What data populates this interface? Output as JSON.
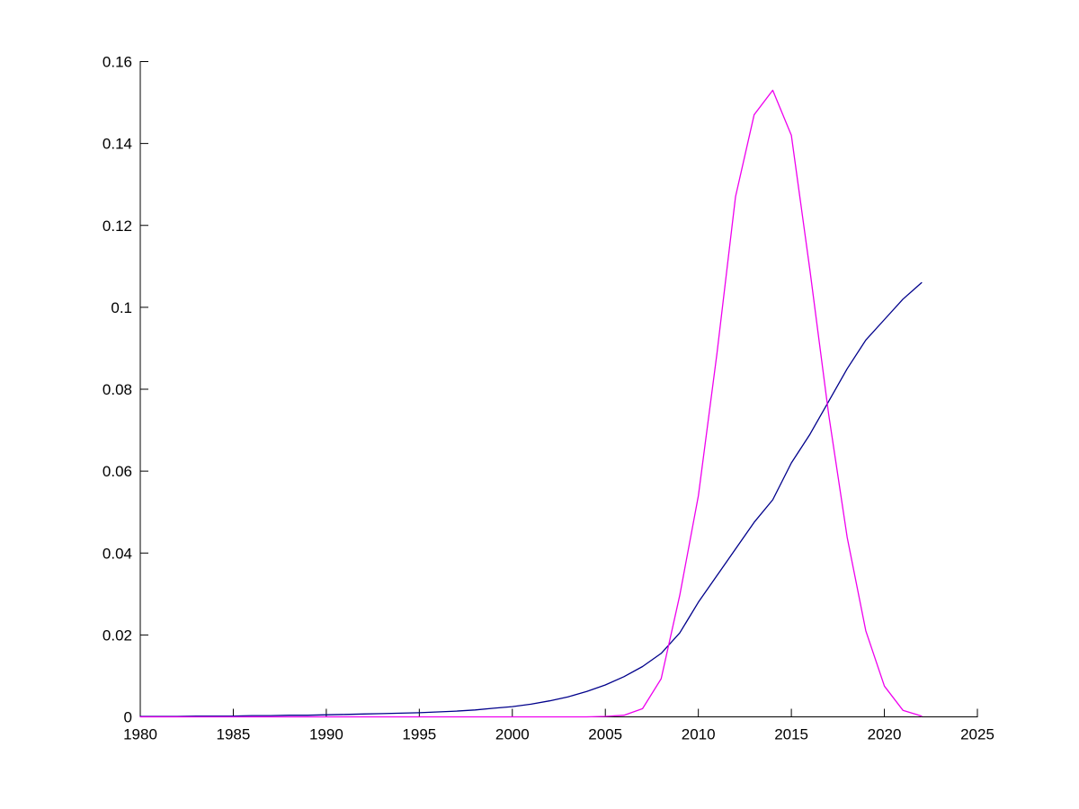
{
  "chart_data": {
    "type": "line",
    "title": "",
    "xlabel": "",
    "ylabel": "",
    "background": "#ffffff",
    "axis_color": "#000000",
    "grid": false,
    "legend": "none",
    "xlim": [
      1980,
      2025
    ],
    "ylim": [
      0,
      0.16
    ],
    "xticks": [
      1980,
      1985,
      1990,
      1995,
      2000,
      2005,
      2010,
      2015,
      2020,
      2025
    ],
    "xtick_labels": [
      "1980",
      "1985",
      "1990",
      "1995",
      "2000",
      "2005",
      "2010",
      "2015",
      "2020",
      "2025"
    ],
    "yticks": [
      0,
      0.02,
      0.04,
      0.06,
      0.08,
      0.1,
      0.12,
      0.14,
      0.16
    ],
    "ytick_labels": [
      "0",
      "0.02",
      "0.04",
      "0.06",
      "0.08",
      "0.1",
      "0.12",
      "0.14",
      "0.16"
    ],
    "x": [
      1980,
      1981,
      1982,
      1983,
      1984,
      1985,
      1986,
      1987,
      1988,
      1989,
      1990,
      1991,
      1992,
      1993,
      1994,
      1995,
      1996,
      1997,
      1998,
      1999,
      2000,
      2001,
      2002,
      2003,
      2004,
      2005,
      2006,
      2007,
      2008,
      2009,
      2010,
      2011,
      2012,
      2013,
      2014,
      2015,
      2016,
      2017,
      2018,
      2019,
      2020,
      2021,
      2022
    ],
    "series": [
      {
        "name": "dark-blue-line",
        "color": "#00008B",
        "values": [
          0.0001,
          0.0001,
          0.0001,
          0.0002,
          0.0002,
          0.0002,
          0.0003,
          0.0003,
          0.0004,
          0.0004,
          0.0005,
          0.0006,
          0.0007,
          0.0008,
          0.0009,
          0.001,
          0.0012,
          0.0014,
          0.0017,
          0.0021,
          0.0025,
          0.0031,
          0.0039,
          0.0049,
          0.0062,
          0.0078,
          0.0098,
          0.0123,
          0.0155,
          0.0205,
          0.028,
          0.0345,
          0.041,
          0.0475,
          0.053,
          0.062,
          0.069,
          0.077,
          0.085,
          0.092,
          0.097,
          0.102,
          0.106
        ]
      },
      {
        "name": "magenta-line",
        "color": "#EE00EE",
        "values": [
          0,
          0,
          0,
          0,
          0,
          0,
          0,
          0,
          0,
          0,
          0,
          0,
          0,
          0,
          0,
          0,
          0,
          0,
          0,
          0,
          0,
          0,
          0,
          0,
          0,
          0.0001,
          0.0004,
          0.002,
          0.0093,
          0.0297,
          0.054,
          0.0888,
          0.127,
          0.147,
          0.153,
          0.142,
          0.109,
          0.074,
          0.0438,
          0.021,
          0.0075,
          0.0016,
          0.0002
        ]
      }
    ]
  }
}
